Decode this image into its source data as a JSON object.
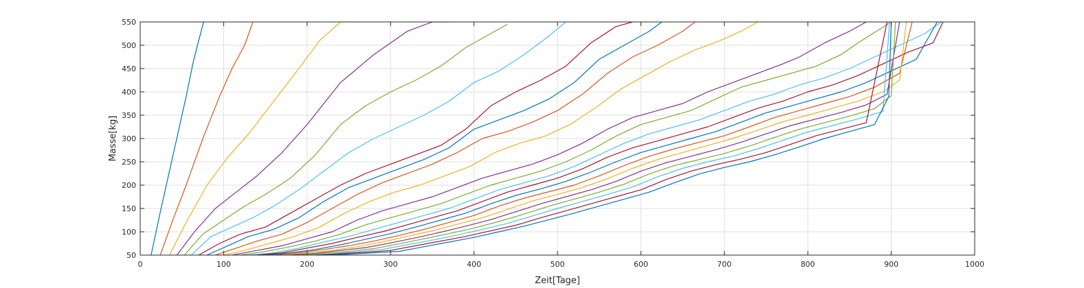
{
  "chart_data": {
    "type": "line",
    "xlabel": "Zeit[Tage]",
    "ylabel": "Masse[kg]",
    "xlim": [
      0,
      1000
    ],
    "ylim": [
      50,
      550
    ],
    "xticks": [
      0,
      100,
      200,
      300,
      400,
      500,
      600,
      700,
      800,
      900,
      1000
    ],
    "yticks": [
      50,
      100,
      150,
      200,
      250,
      300,
      350,
      400,
      450,
      500,
      550
    ],
    "grid": true,
    "legend": "none",
    "colors": [
      "#0072bd",
      "#d95319",
      "#edb120",
      "#7e2f8e",
      "#77ac30",
      "#4dbeee",
      "#a2142f"
    ],
    "series": [
      {
        "x": [
          13,
          25,
          40,
          55,
          63,
          70,
          76
        ],
        "y": [
          50,
          150,
          270,
          390,
          460,
          510,
          550
        ]
      },
      {
        "x": [
          24,
          40,
          55,
          75,
          95,
          110,
          125,
          135
        ],
        "y": [
          50,
          130,
          200,
          300,
          390,
          450,
          500,
          550
        ]
      },
      {
        "x": [
          35,
          55,
          80,
          105,
          130,
          160,
          190,
          215,
          240,
          260
        ],
        "y": [
          50,
          120,
          200,
          260,
          310,
          380,
          450,
          510,
          550,
          550
        ]
      },
      {
        "x": [
          44,
          65,
          90,
          115,
          140,
          170,
          200,
          240,
          280,
          320,
          350,
          370
        ],
        "y": [
          50,
          100,
          150,
          185,
          220,
          270,
          330,
          420,
          480,
          530,
          550,
          550
        ]
      },
      {
        "x": [
          53,
          75,
          100,
          125,
          150,
          180,
          210,
          240,
          270,
          300,
          330,
          360,
          390,
          420,
          440
        ],
        "y": [
          50,
          95,
          125,
          155,
          180,
          215,
          265,
          330,
          370,
          400,
          425,
          455,
          495,
          525,
          545
        ]
      },
      {
        "x": [
          61,
          85,
          110,
          135,
          160,
          190,
          220,
          250,
          280,
          310,
          340,
          370,
          400,
          430,
          460,
          490,
          510
        ],
        "y": [
          50,
          90,
          110,
          130,
          155,
          190,
          230,
          270,
          300,
          325,
          350,
          380,
          420,
          445,
          480,
          520,
          550
        ]
      },
      {
        "x": [
          70,
          95,
          120,
          150,
          180,
          210,
          240,
          270,
          300,
          330,
          360,
          390,
          420,
          450,
          480,
          510,
          540,
          570,
          590
        ],
        "y": [
          50,
          75,
          95,
          110,
          140,
          170,
          200,
          225,
          245,
          265,
          285,
          320,
          370,
          400,
          425,
          455,
          505,
          540,
          550
        ]
      },
      {
        "x": [
          80,
          105,
          130,
          160,
          190,
          220,
          250,
          280,
          310,
          340,
          370,
          400,
          430,
          460,
          490,
          520,
          550,
          580,
          610,
          625
        ],
        "y": [
          50,
          70,
          90,
          105,
          130,
          165,
          195,
          215,
          235,
          255,
          280,
          320,
          340,
          360,
          385,
          420,
          470,
          500,
          530,
          550
        ]
      },
      {
        "x": [
          90,
          115,
          140,
          170,
          200,
          230,
          260,
          290,
          320,
          350,
          380,
          410,
          440,
          470,
          500,
          530,
          560,
          590,
          620,
          650,
          665
        ],
        "y": [
          50,
          65,
          80,
          95,
          120,
          150,
          180,
          205,
          225,
          245,
          270,
          300,
          315,
          335,
          360,
          395,
          440,
          475,
          500,
          530,
          550
        ]
      },
      {
        "x": [
          100,
          125,
          155,
          185,
          215,
          245,
          275,
          305,
          335,
          365,
          395,
          425,
          455,
          485,
          515,
          545,
          575,
          605,
          635,
          665,
          695,
          720,
          740
        ],
        "y": [
          50,
          60,
          75,
          90,
          110,
          140,
          165,
          185,
          200,
          220,
          240,
          270,
          290,
          305,
          330,
          365,
          405,
          435,
          465,
          490,
          510,
          530,
          550
        ]
      },
      {
        "x": [
          110,
          140,
          170,
          200,
          230,
          260,
          290,
          320,
          350,
          380,
          410,
          440,
          470,
          500,
          530,
          560,
          590,
          620,
          650,
          680,
          710,
          740,
          770,
          790,
          820,
          850,
          870
        ],
        "y": [
          50,
          60,
          70,
          85,
          100,
          125,
          145,
          160,
          175,
          195,
          215,
          230,
          245,
          265,
          290,
          320,
          345,
          360,
          375,
          400,
          420,
          440,
          460,
          475,
          505,
          530,
          550
        ]
      },
      {
        "x": [
          120,
          150,
          180,
          210,
          240,
          270,
          300,
          330,
          360,
          390,
          420,
          450,
          480,
          510,
          540,
          570,
          600,
          630,
          660,
          690,
          720,
          750,
          780,
          810,
          840,
          860,
          900
        ],
        "y": [
          50,
          58,
          68,
          80,
          95,
          115,
          130,
          145,
          160,
          180,
          200,
          215,
          230,
          250,
          275,
          305,
          330,
          345,
          360,
          385,
          410,
          425,
          440,
          455,
          480,
          505,
          550
        ]
      },
      {
        "x": [
          130,
          160,
          190,
          220,
          250,
          280,
          310,
          340,
          370,
          400,
          430,
          460,
          490,
          520,
          550,
          580,
          610,
          640,
          670,
          700,
          730,
          760,
          790,
          820,
          850,
          880,
          910,
          940,
          960
        ],
        "y": [
          50,
          55,
          65,
          78,
          90,
          105,
          120,
          135,
          150,
          170,
          190,
          205,
          220,
          240,
          265,
          290,
          310,
          325,
          340,
          360,
          380,
          395,
          415,
          430,
          450,
          475,
          500,
          525,
          550
        ]
      },
      {
        "x": [
          140,
          170,
          200,
          230,
          260,
          290,
          320,
          350,
          380,
          410,
          440,
          470,
          500,
          530,
          560,
          590,
          620,
          650,
          680,
          710,
          740,
          770,
          800,
          830,
          860,
          890,
          920,
          950,
          962
        ],
        "y": [
          50,
          55,
          65,
          75,
          88,
          100,
          115,
          130,
          145,
          165,
          185,
          200,
          215,
          235,
          260,
          280,
          295,
          310,
          325,
          345,
          365,
          380,
          400,
          415,
          435,
          460,
          485,
          505,
          550
        ]
      },
      {
        "x": [
          150,
          180,
          210,
          240,
          270,
          300,
          330,
          360,
          390,
          420,
          450,
          480,
          510,
          540,
          570,
          600,
          630,
          660,
          690,
          720,
          750,
          780,
          810,
          840,
          870,
          900,
          930,
          955
        ],
        "y": [
          50,
          55,
          62,
          72,
          84,
          96,
          110,
          125,
          140,
          160,
          178,
          192,
          208,
          228,
          250,
          270,
          285,
          300,
          315,
          335,
          355,
          370,
          385,
          400,
          420,
          445,
          470,
          550
        ]
      },
      {
        "x": [
          160,
          190,
          220,
          250,
          280,
          310,
          340,
          370,
          400,
          430,
          460,
          490,
          520,
          550,
          580,
          610,
          640,
          670,
          700,
          730,
          760,
          790,
          820,
          850,
          880,
          910,
          925
        ],
        "y": [
          50,
          55,
          62,
          70,
          80,
          92,
          105,
          120,
          135,
          155,
          172,
          186,
          200,
          220,
          242,
          262,
          278,
          292,
          306,
          325,
          345,
          360,
          375,
          390,
          410,
          440,
          550
        ]
      },
      {
        "x": [
          170,
          200,
          230,
          260,
          290,
          320,
          350,
          380,
          410,
          440,
          470,
          500,
          530,
          560,
          590,
          620,
          650,
          680,
          710,
          740,
          770,
          800,
          830,
          860,
          890,
          910,
          918
        ],
        "y": [
          50,
          55,
          60,
          68,
          78,
          90,
          102,
          116,
          130,
          148,
          166,
          180,
          195,
          214,
          236,
          255,
          270,
          285,
          300,
          318,
          336,
          350,
          365,
          380,
          400,
          425,
          550
        ]
      },
      {
        "x": [
          180,
          210,
          240,
          270,
          300,
          330,
          360,
          390,
          420,
          450,
          480,
          510,
          540,
          570,
          600,
          630,
          660,
          690,
          720,
          750,
          780,
          810,
          840,
          870,
          895,
          910
        ],
        "y": [
          50,
          54,
          60,
          66,
          76,
          87,
          99,
          112,
          126,
          143,
          160,
          175,
          190,
          208,
          230,
          248,
          262,
          276,
          292,
          310,
          328,
          342,
          356,
          372,
          395,
          550
        ]
      },
      {
        "x": [
          190,
          220,
          250,
          280,
          310,
          340,
          370,
          400,
          430,
          460,
          490,
          520,
          550,
          580,
          610,
          640,
          670,
          700,
          730,
          760,
          790,
          820,
          850,
          880,
          900,
          905
        ],
        "y": [
          50,
          54,
          58,
          64,
          74,
          85,
          96,
          108,
          122,
          138,
          155,
          170,
          185,
          202,
          224,
          242,
          255,
          268,
          284,
          302,
          320,
          334,
          348,
          364,
          392,
          550
        ]
      },
      {
        "x": [
          200,
          230,
          260,
          290,
          320,
          350,
          380,
          410,
          440,
          470,
          500,
          530,
          560,
          590,
          620,
          650,
          680,
          710,
          740,
          770,
          800,
          830,
          860,
          890,
          898
        ],
        "y": [
          50,
          53,
          57,
          62,
          72,
          82,
          93,
          105,
          118,
          134,
          150,
          165,
          180,
          196,
          218,
          236,
          250,
          262,
          278,
          296,
          314,
          328,
          342,
          358,
          550
        ]
      },
      {
        "x": [
          210,
          240,
          270,
          300,
          330,
          360,
          390,
          420,
          450,
          480,
          510,
          540,
          570,
          600,
          630,
          660,
          690,
          720,
          750,
          780,
          810,
          840,
          870,
          895
        ],
        "y": [
          50,
          53,
          56,
          60,
          70,
          80,
          90,
          102,
          114,
          130,
          145,
          160,
          175,
          190,
          212,
          230,
          244,
          256,
          270,
          288,
          306,
          320,
          334,
          550
        ]
      },
      {
        "x": [
          220,
          250,
          280,
          310,
          340,
          370,
          400,
          430,
          460,
          490,
          520,
          550,
          580,
          610,
          640,
          670,
          700,
          730,
          760,
          790,
          820,
          850,
          880,
          897,
          900
        ],
        "y": [
          50,
          52,
          55,
          58,
          68,
          78,
          88,
          100,
          112,
          126,
          140,
          155,
          170,
          185,
          205,
          224,
          238,
          250,
          265,
          282,
          300,
          315,
          330,
          390,
          550
        ]
      }
    ]
  }
}
